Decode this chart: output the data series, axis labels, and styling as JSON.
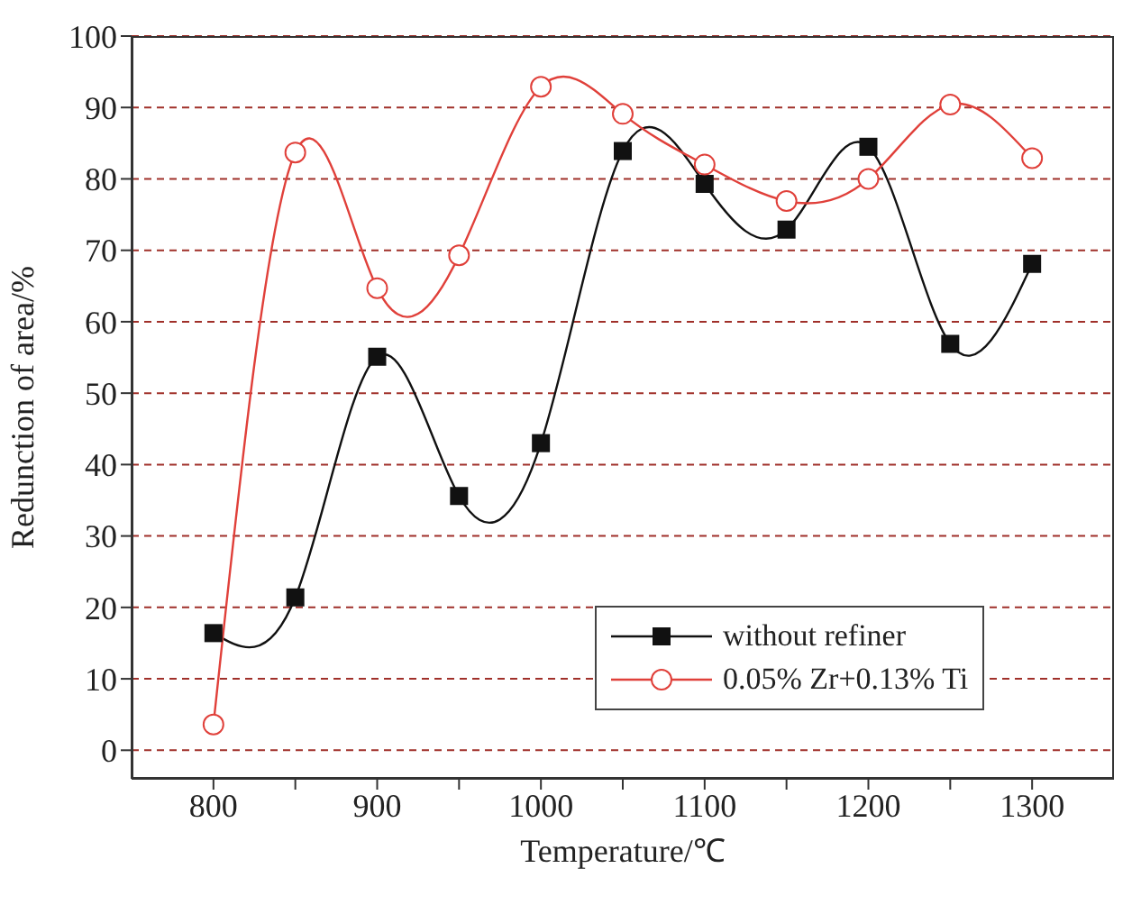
{
  "chart_data": {
    "type": "line",
    "xlabel": "Temperature/℃",
    "ylabel": "Redunction of area/%",
    "x": [
      800,
      850,
      900,
      950,
      1000,
      1050,
      1100,
      1150,
      1200,
      1250,
      1300
    ],
    "series": [
      {
        "name": "without refiner",
        "color": "#111111",
        "marker": "square",
        "values": [
          16.4,
          21.4,
          55.1,
          35.6,
          43,
          83.9,
          79.3,
          72.9,
          84.5,
          56.9,
          68.1
        ]
      },
      {
        "name": "0.05% Zr+0.13% Ti",
        "color": "#e0403a",
        "marker": "circle",
        "values": [
          3.6,
          83.7,
          64.7,
          69.3,
          92.9,
          89.1,
          82,
          76.9,
          80,
          90.4,
          82.9
        ]
      }
    ],
    "xlim": [
      750,
      1350
    ],
    "xticks": [
      800,
      {
        "value": 850,
        "label": null
      },
      900,
      {
        "value": 950,
        "label": null
      },
      1000,
      {
        "value": 1050,
        "label": null
      },
      1100,
      {
        "value": 1150,
        "label": null
      },
      1200,
      {
        "value": 1250,
        "label": null
      },
      1300
    ],
    "ylim": [
      -4,
      100
    ],
    "yticks": [
      0,
      10,
      20,
      30,
      40,
      50,
      60,
      70,
      80,
      90,
      100
    ],
    "grid": "y",
    "legend": "bottom right",
    "line_style": "solid"
  }
}
